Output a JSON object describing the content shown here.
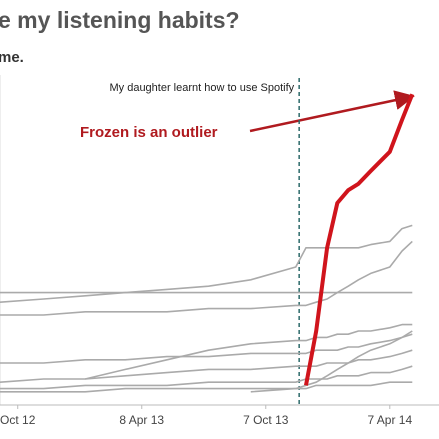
{
  "chart_data": {
    "type": "line",
    "title": "e my listening habits?",
    "subtitle": "me.",
    "x": [
      "2012-09-12",
      "2012-11-15",
      "2013-01-15",
      "2013-03-15",
      "2013-05-15",
      "2013-07-15",
      "2013-09-15",
      "2013-11-20",
      "2013-12-05",
      "2013-12-20",
      "2014-01-05",
      "2014-01-20",
      "2014-02-05",
      "2014-02-20",
      "2014-03-10",
      "2014-04-07",
      "2014-04-25",
      "2014-05-10"
    ],
    "xlim": [
      "2012-09-12",
      "2014-06-05"
    ],
    "xticks": [
      {
        "value": "2012-10-08",
        "label": "Oct 12"
      },
      {
        "value": "2013-04-08",
        "label": "8 Apr 13"
      },
      {
        "value": "2013-10-07",
        "label": "7 Oct 13"
      },
      {
        "value": "2014-04-07",
        "label": "7 Apr 14"
      }
    ],
    "ylim": [
      0,
      100
    ],
    "series": [
      {
        "color": "#aaaaaa",
        "values": [
          29,
          30,
          31,
          32,
          33,
          34,
          36,
          40,
          46,
          46,
          46,
          46,
          46,
          46,
          47,
          48,
          52,
          53
        ]
      },
      {
        "color": "#aaaaaa",
        "values": [
          32,
          32,
          32,
          32,
          32,
          32,
          32,
          32,
          32,
          32,
          32,
          32,
          32,
          32,
          32,
          32,
          32,
          32
        ]
      },
      {
        "color": "#aaaaaa",
        "values": [
          25,
          25,
          26,
          26,
          26,
          27,
          27,
          28,
          28,
          29,
          30,
          32,
          34,
          36,
          38,
          40,
          45,
          48
        ]
      },
      {
        "color": "#aaaaaa",
        "values": [
          null,
          null,
          5,
          8,
          11,
          14,
          16,
          17,
          17,
          18,
          18,
          19,
          19,
          20,
          20,
          21,
          22,
          22
        ]
      },
      {
        "color": "#aaaaaa",
        "values": [
          10,
          10,
          11,
          11,
          12,
          12,
          13,
          13,
          13,
          14,
          14,
          14,
          15,
          15,
          16,
          17,
          18,
          19
        ]
      },
      {
        "color": "#aaaaaa",
        "values": [
          4,
          5,
          5,
          6,
          7,
          8,
          8,
          9,
          9,
          9,
          10,
          10,
          10,
          11,
          11,
          12,
          13,
          14
        ]
      },
      {
        "color": "#aaaaaa",
        "values": [
          2,
          2,
          3,
          3,
          3,
          4,
          4,
          4,
          5,
          5,
          5,
          6,
          6,
          6,
          7,
          7,
          8,
          9
        ]
      },
      {
        "color": "#aaaaaa",
        "values": [
          1,
          1,
          1,
          2,
          2,
          2,
          2,
          2,
          2,
          3,
          3,
          3,
          3,
          3,
          3,
          4,
          4,
          4
        ]
      },
      {
        "color": "#aaaaaa",
        "values": [
          null,
          null,
          null,
          null,
          null,
          null,
          1,
          2,
          3,
          4,
          6,
          8,
          10,
          12,
          14,
          16,
          18,
          20
        ]
      },
      {
        "color": "#d0141c",
        "values": [
          null,
          null,
          null,
          null,
          null,
          null,
          null,
          null,
          3,
          20,
          46,
          60,
          64,
          66,
          70,
          76,
          86,
          94
        ]
      }
    ],
    "annotations": [
      {
        "text": "My daughter learnt how to use Spotify",
        "x": "2013-11-25"
      },
      {
        "text": "Frozen is an outlier"
      }
    ]
  }
}
